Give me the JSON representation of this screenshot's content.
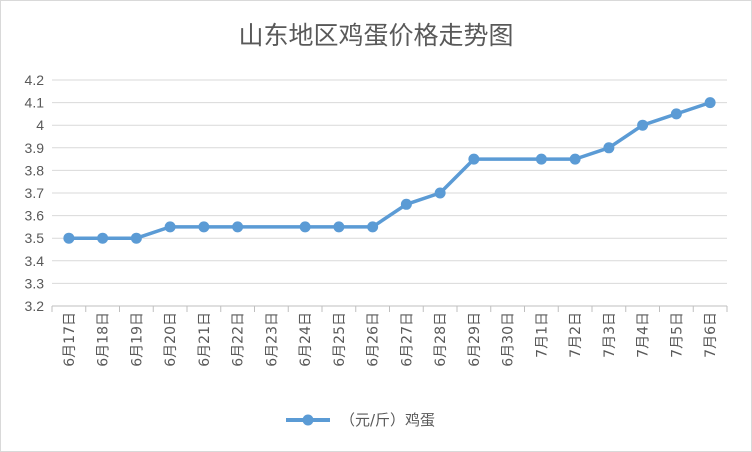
{
  "chart_data": {
    "type": "line",
    "title": "山东地区鸡蛋价格走势图",
    "xlabel": "",
    "ylabel": "",
    "ylim": [
      3.2,
      4.2
    ],
    "yticks": [
      "4.2",
      "4.1",
      "4",
      "3.9",
      "3.8",
      "3.7",
      "3.6",
      "3.5",
      "3.4",
      "3.3",
      "3.2"
    ],
    "grid": true,
    "legend_position": "bottom",
    "categories": [
      "6月17日",
      "6月18日",
      "6月19日",
      "6月20日",
      "6月21日",
      "6月22日",
      "6月23日",
      "6月24日",
      "6月25日",
      "6月26日",
      "6月27日",
      "6月28日",
      "6月29日",
      "6月30日",
      "7月1日",
      "7月2日",
      "7月3日",
      "7月4日",
      "7月5日",
      "7月6日"
    ],
    "series": [
      {
        "name": "（元/斤）鸡蛋",
        "color": "#5b9bd5",
        "values": [
          3.5,
          3.5,
          3.5,
          3.55,
          3.55,
          3.55,
          null,
          3.55,
          3.55,
          3.55,
          3.65,
          3.7,
          3.85,
          null,
          3.85,
          3.85,
          3.9,
          4.0,
          4.05,
          4.1
        ]
      }
    ]
  }
}
